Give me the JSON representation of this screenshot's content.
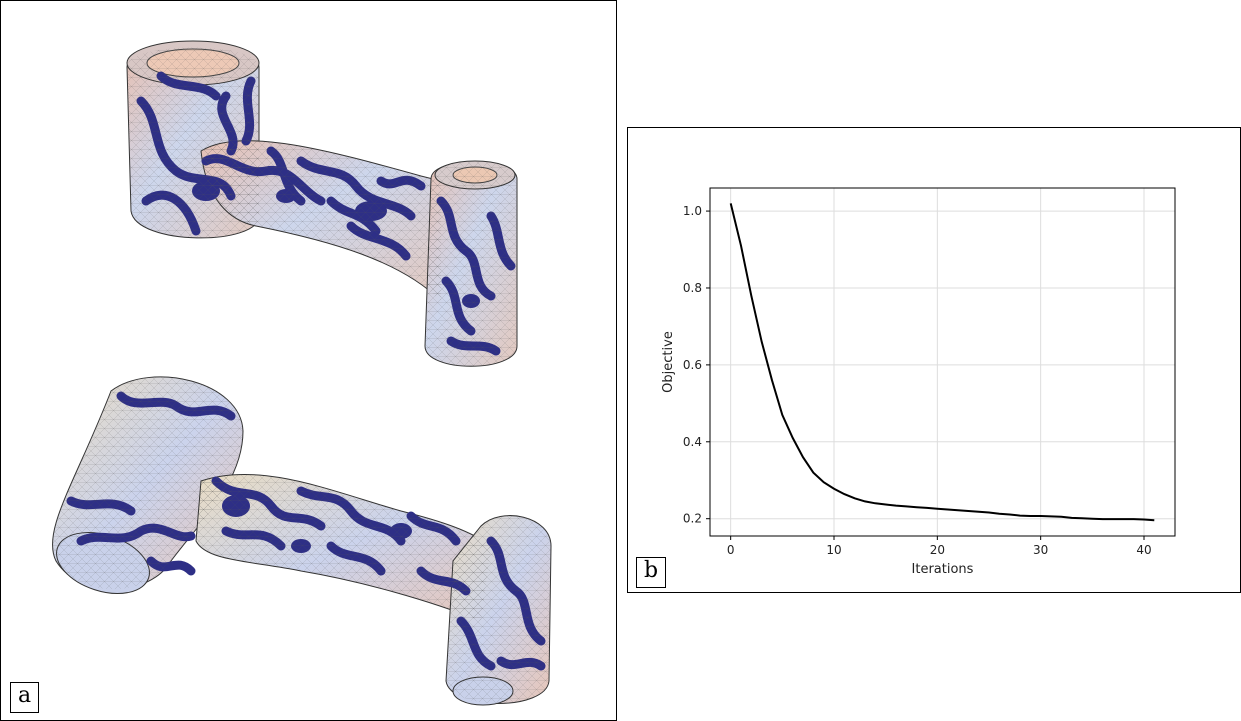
{
  "panels": {
    "a": {
      "tag": "a"
    },
    "b": {
      "tag": "b"
    }
  },
  "colors": {
    "pattern": "#2e2f86",
    "surface_light": "#c9d3ea",
    "surface_warm": "#e9c2b3",
    "line": "#000000",
    "grid": "#dddddd"
  },
  "chart_data": {
    "type": "line",
    "title": "",
    "xlabel": "Iterations",
    "ylabel": "Objective",
    "xlim": [
      -2,
      43
    ],
    "ylim": [
      0.155,
      1.06
    ],
    "xticks": [
      0,
      10,
      20,
      30,
      40
    ],
    "yticks": [
      0.2,
      0.4,
      0.6,
      0.8,
      1.0
    ],
    "xtick_labels": [
      "0",
      "10",
      "20",
      "30",
      "40"
    ],
    "ytick_labels": [
      "0.2",
      "0.4",
      "0.6",
      "0.8",
      "1.0"
    ],
    "grid": true,
    "series": [
      {
        "x": [
          0,
          1,
          2,
          3,
          4,
          5,
          6,
          7,
          8,
          9,
          10,
          11,
          12,
          13,
          14,
          15,
          16,
          17,
          18,
          19,
          20,
          21,
          22,
          23,
          24,
          25,
          26,
          27,
          28,
          29,
          30,
          31,
          32,
          33,
          34,
          35,
          36,
          37,
          38,
          39,
          40,
          41
        ],
        "y": [
          1.02,
          0.91,
          0.78,
          0.66,
          0.56,
          0.47,
          0.41,
          0.36,
          0.32,
          0.295,
          0.278,
          0.264,
          0.253,
          0.245,
          0.24,
          0.237,
          0.234,
          0.232,
          0.23,
          0.228,
          0.226,
          0.224,
          0.222,
          0.22,
          0.218,
          0.216,
          0.213,
          0.211,
          0.208,
          0.207,
          0.207,
          0.206,
          0.205,
          0.202,
          0.201,
          0.2,
          0.199,
          0.199,
          0.199,
          0.199,
          0.198,
          0.196
        ]
      }
    ]
  }
}
